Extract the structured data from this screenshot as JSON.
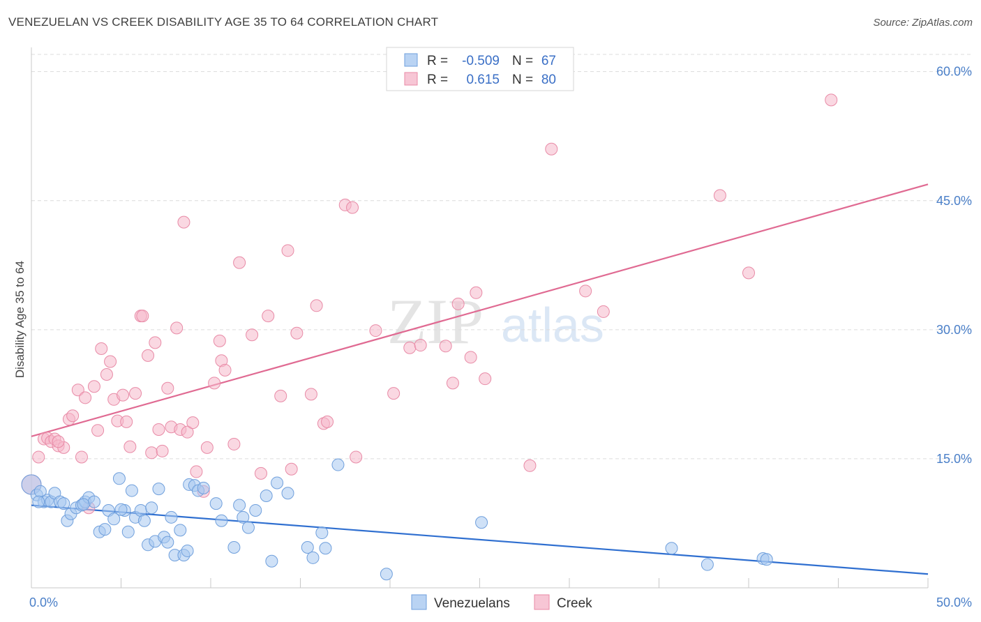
{
  "title": "VENEZUELAN VS CREEK DISABILITY AGE 35 TO 64 CORRELATION CHART",
  "source": "Source: ZipAtlas.com",
  "watermark": {
    "zip": "ZIP",
    "atlas": "atlas"
  },
  "chart_data": {
    "type": "scatter",
    "xlabel": "",
    "ylabel": "Disability Age 35 to 64",
    "xlim": [
      0,
      50
    ],
    "ylim": [
      0,
      62
    ],
    "x_tick_labels": [
      "0.0%",
      "50.0%"
    ],
    "y_ticks": [
      15,
      30,
      45,
      60
    ],
    "y_tick_labels": [
      "15.0%",
      "30.0%",
      "45.0%",
      "60.0%"
    ],
    "grid": "horizontal dashed",
    "legend_top": [
      {
        "r_label": "R =",
        "r_value": "-0.509",
        "n_label": "N =",
        "n_value": "67",
        "color": "#a8c8f0"
      },
      {
        "r_label": "R =",
        "r_value": "0.615",
        "n_label": "N =",
        "n_value": "80",
        "color": "#f5b8ca"
      }
    ],
    "series": [
      {
        "name": "Venezuelans",
        "color": "#a8c8f0",
        "stroke": "#6f9fdc",
        "line_color": "#2f6fd0",
        "trend": {
          "x0": 0,
          "y0": 9.6,
          "x1": 50,
          "y1": 1.6
        },
        "points": [
          [
            0,
            12
          ],
          [
            0.3,
            10.8
          ],
          [
            0.5,
            11.2
          ],
          [
            0.7,
            10
          ],
          [
            0.9,
            10.2
          ],
          [
            1.1,
            10
          ],
          [
            1.3,
            11
          ],
          [
            1.6,
            10
          ],
          [
            1.8,
            9.8
          ],
          [
            2,
            7.8
          ],
          [
            2.2,
            8.6
          ],
          [
            2.5,
            9.3
          ],
          [
            2.8,
            9.6
          ],
          [
            3,
            10
          ],
          [
            3.2,
            10.5
          ],
          [
            3.5,
            10
          ],
          [
            3.8,
            6.5
          ],
          [
            4.1,
            6.8
          ],
          [
            4.3,
            9
          ],
          [
            4.6,
            8
          ],
          [
            4.9,
            12.7
          ],
          [
            5.2,
            9
          ],
          [
            5.4,
            6.5
          ],
          [
            5.6,
            11.3
          ],
          [
            5.8,
            8.2
          ],
          [
            6.1,
            9
          ],
          [
            6.3,
            7.8
          ],
          [
            6.5,
            5
          ],
          [
            6.7,
            9.3
          ],
          [
            6.9,
            5.4
          ],
          [
            7.1,
            11.5
          ],
          [
            7.4,
            5.9
          ],
          [
            7.6,
            5.3
          ],
          [
            7.8,
            8.2
          ],
          [
            8.0,
            3.8
          ],
          [
            8.3,
            6.7
          ],
          [
            8.5,
            3.8
          ],
          [
            8.7,
            4.3
          ],
          [
            8.8,
            12
          ],
          [
            9.1,
            11.9
          ],
          [
            9.3,
            11.3
          ],
          [
            10.3,
            9.8
          ],
          [
            10.6,
            7.8
          ],
          [
            11.3,
            4.7
          ],
          [
            11.6,
            9.6
          ],
          [
            11.8,
            8.2
          ],
          [
            12.1,
            7
          ],
          [
            12.5,
            9
          ],
          [
            13.1,
            10.7
          ],
          [
            13.4,
            3.1
          ],
          [
            13.7,
            12.2
          ],
          [
            14.3,
            11
          ],
          [
            15.4,
            4.7
          ],
          [
            15.7,
            3.5
          ],
          [
            16.2,
            6.4
          ],
          [
            16.4,
            4.6
          ],
          [
            17.1,
            14.3
          ],
          [
            19.8,
            1.6
          ],
          [
            25.1,
            7.6
          ],
          [
            35.7,
            4.6
          ],
          [
            37.7,
            2.7
          ],
          [
            40.8,
            3.4
          ],
          [
            41.0,
            3.3
          ],
          [
            0.4,
            10
          ],
          [
            2.9,
            9.7
          ],
          [
            5.0,
            9.1
          ],
          [
            9.6,
            11.6
          ]
        ]
      },
      {
        "name": "Creek",
        "color": "#f5b8ca",
        "stroke": "#e88aa6",
        "line_color": "#e06a92",
        "trend": {
          "x0": 0,
          "y0": 17.6,
          "x1": 50,
          "y1": 46.9
        },
        "points": [
          [
            0,
            12
          ],
          [
            0.4,
            15.2
          ],
          [
            0.7,
            17.3
          ],
          [
            0.9,
            17.4
          ],
          [
            1.1,
            17
          ],
          [
            1.3,
            17.3
          ],
          [
            1.5,
            16.5
          ],
          [
            1.8,
            16.3
          ],
          [
            2.1,
            19.6
          ],
          [
            2.3,
            20
          ],
          [
            2.6,
            23
          ],
          [
            2.8,
            15.2
          ],
          [
            3.0,
            22.1
          ],
          [
            3.2,
            9.3
          ],
          [
            3.5,
            23.4
          ],
          [
            3.7,
            18.3
          ],
          [
            3.9,
            27.8
          ],
          [
            4.2,
            24.8
          ],
          [
            4.4,
            26.3
          ],
          [
            4.6,
            21.9
          ],
          [
            4.8,
            19.4
          ],
          [
            5.1,
            22.4
          ],
          [
            5.3,
            19.3
          ],
          [
            5.5,
            16.4
          ],
          [
            5.8,
            22.6
          ],
          [
            6.1,
            31.6
          ],
          [
            6.2,
            31.6
          ],
          [
            6.5,
            27
          ],
          [
            6.7,
            15.7
          ],
          [
            6.9,
            28.5
          ],
          [
            7.1,
            18.4
          ],
          [
            7.3,
            15.9
          ],
          [
            7.6,
            23.2
          ],
          [
            7.8,
            18.7
          ],
          [
            8.1,
            30.2
          ],
          [
            8.3,
            18.4
          ],
          [
            8.5,
            42.5
          ],
          [
            8.7,
            18.1
          ],
          [
            9.0,
            19.2
          ],
          [
            9.2,
            13.5
          ],
          [
            9.6,
            11.2
          ],
          [
            9.8,
            16.3
          ],
          [
            10.2,
            23.8
          ],
          [
            10.5,
            28.7
          ],
          [
            10.6,
            26.4
          ],
          [
            10.8,
            25.3
          ],
          [
            11.3,
            16.7
          ],
          [
            11.6,
            37.8
          ],
          [
            12.3,
            29.4
          ],
          [
            12.8,
            13.3
          ],
          [
            13.2,
            31.6
          ],
          [
            13.9,
            22.3
          ],
          [
            14.3,
            39.2
          ],
          [
            14.5,
            13.8
          ],
          [
            14.8,
            29.6
          ],
          [
            15.6,
            22.5
          ],
          [
            15.9,
            32.8
          ],
          [
            16.3,
            19.1
          ],
          [
            16.5,
            19.3
          ],
          [
            17.5,
            44.5
          ],
          [
            17.9,
            44.2
          ],
          [
            18.1,
            15.2
          ],
          [
            19.2,
            29.9
          ],
          [
            20.2,
            22.6
          ],
          [
            21.1,
            27.9
          ],
          [
            21.7,
            28.2
          ],
          [
            23.1,
            28.1
          ],
          [
            23.5,
            23.8
          ],
          [
            23.8,
            33
          ],
          [
            24.5,
            26.8
          ],
          [
            24.8,
            34.3
          ],
          [
            25.3,
            24.3
          ],
          [
            27.8,
            14.2
          ],
          [
            29.0,
            51
          ],
          [
            30.9,
            34.5
          ],
          [
            31.9,
            32.1
          ],
          [
            38.4,
            45.6
          ],
          [
            40.0,
            36.6
          ],
          [
            44.6,
            56.7
          ],
          [
            1.5,
            17.0
          ]
        ]
      }
    ]
  }
}
